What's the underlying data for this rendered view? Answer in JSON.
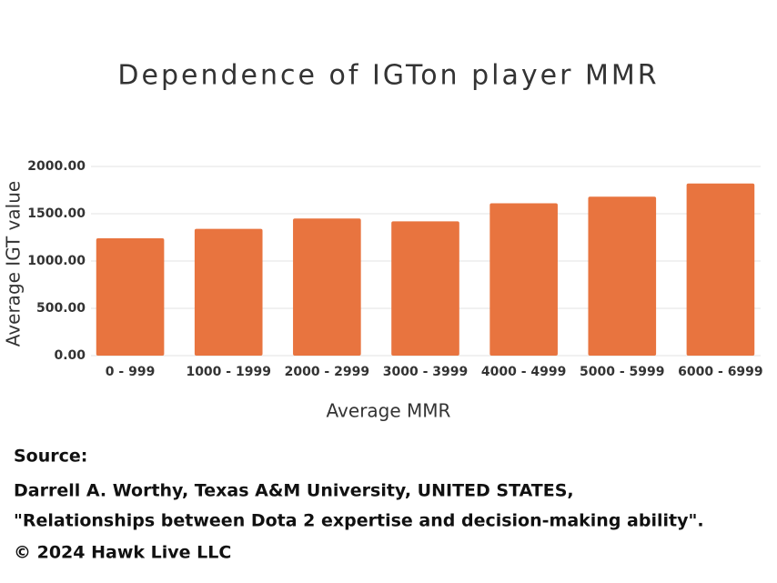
{
  "chart_data": {
    "type": "bar",
    "title": "Dependence of IGTon player MMR",
    "x_label": "Average MMR",
    "y_label": "Average IGT value",
    "categories": [
      "0 - 999",
      "1000 - 1999",
      "2000 - 2999",
      "3000 - 3999",
      "4000 - 4999",
      "5000 - 5999",
      "6000 - 6999"
    ],
    "values": [
      1240,
      1340,
      1450,
      1420,
      1610,
      1680,
      1820
    ],
    "color": "#e8743f",
    "ylim": [
      0,
      2000
    ],
    "yticks": [
      {
        "value": 0,
        "label": "0.00"
      },
      {
        "value": 500,
        "label": "500.00"
      },
      {
        "value": 1000,
        "label": "1000.00"
      },
      {
        "value": 1500,
        "label": "1500.00"
      },
      {
        "value": 2000,
        "label": "2000.00"
      }
    ],
    "grid": true
  },
  "footer": {
    "source_label": "Source:",
    "lines": [
      "Darrell A. Worthy, Texas A&M University, UNITED STATES,",
      "\"Relationships between Dota 2 expertise and decision-making ability\"."
    ],
    "copyright": "© 2024 Hawk Live LLC"
  }
}
